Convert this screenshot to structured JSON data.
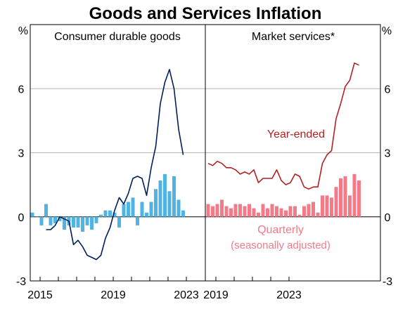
{
  "chart_data": [
    {
      "type": "line+bar",
      "title": "Goods and Services Inflation",
      "panel_title": "Consumer durable goods",
      "y_unit": "%",
      "ylim": [
        -3,
        9
      ],
      "yticks": [
        -3,
        0,
        3,
        6
      ],
      "xtick_labels": [
        "2015",
        "2019",
        "2023"
      ],
      "x_start": 2014.75,
      "series": [
        {
          "name": "",
          "type": "bar",
          "color": "#4fb3e3",
          "values": [
            0.2,
            0.0,
            -0.4,
            0.6,
            -0.4,
            -0.3,
            -0.2,
            -0.6,
            -0.4,
            -0.5,
            -0.5,
            -0.7,
            -0.4,
            -0.6,
            -0.3,
            0.1,
            0.3,
            0.3,
            0.2,
            -0.5,
            0.6,
            0.7,
            0.9,
            -0.4,
            0.7,
            0.2,
            0.7,
            1.3,
            1.7,
            2.0,
            1.2,
            1.9,
            0.8,
            0.3
          ]
        },
        {
          "name": "",
          "type": "line",
          "color": "#00205b",
          "values": [
            null,
            null,
            null,
            -0.6,
            -0.6,
            -0.4,
            0.0,
            -0.1,
            -0.2,
            -1.3,
            -1.1,
            -1.4,
            -1.8,
            -1.9,
            -2.0,
            -1.8,
            -1.0,
            -0.5,
            0.3,
            0.9,
            0.6,
            1.1,
            1.8,
            1.9,
            1.8,
            1.0,
            2.3,
            3.3,
            5.3,
            6.3,
            6.9,
            6.0,
            4.1,
            2.9
          ]
        }
      ]
    },
    {
      "type": "line+bar",
      "panel_title": "Market services*",
      "y_unit": "%",
      "ylim": [
        -3,
        9
      ],
      "yticks": [
        -3,
        0,
        3,
        6
      ],
      "xtick_labels": [
        "2019",
        "2023"
      ],
      "x_start": 2015.0,
      "series": [
        {
          "name": "Year-ended",
          "type": "line",
          "color": "#b22222",
          "values": [
            2.5,
            2.4,
            2.6,
            2.5,
            2.3,
            2.3,
            2.2,
            2.0,
            2.1,
            2.0,
            2.2,
            1.6,
            1.8,
            1.8,
            1.8,
            2.2,
            1.7,
            1.5,
            1.6,
            2.0,
            1.9,
            1.4,
            1.3,
            1.4,
            1.4,
            2.5,
            2.9,
            3.1,
            4.6,
            5.3,
            6.1,
            6.4,
            7.2,
            7.1
          ]
        },
        {
          "name": "Quarterly",
          "subname": "(seasonally adjusted)",
          "type": "bar",
          "color": "#f47a88",
          "values": [
            0.6,
            0.5,
            0.6,
            0.8,
            0.5,
            0.4,
            0.6,
            0.6,
            0.5,
            0.6,
            0.4,
            0.2,
            0.6,
            0.4,
            0.6,
            0.5,
            0.4,
            0.3,
            0.5,
            0.5,
            0.1,
            0.5,
            0.6,
            0.7,
            0.2,
            1.0,
            1.0,
            0.9,
            1.4,
            1.8,
            1.9,
            1.0,
            2.0,
            1.7
          ]
        }
      ]
    }
  ]
}
